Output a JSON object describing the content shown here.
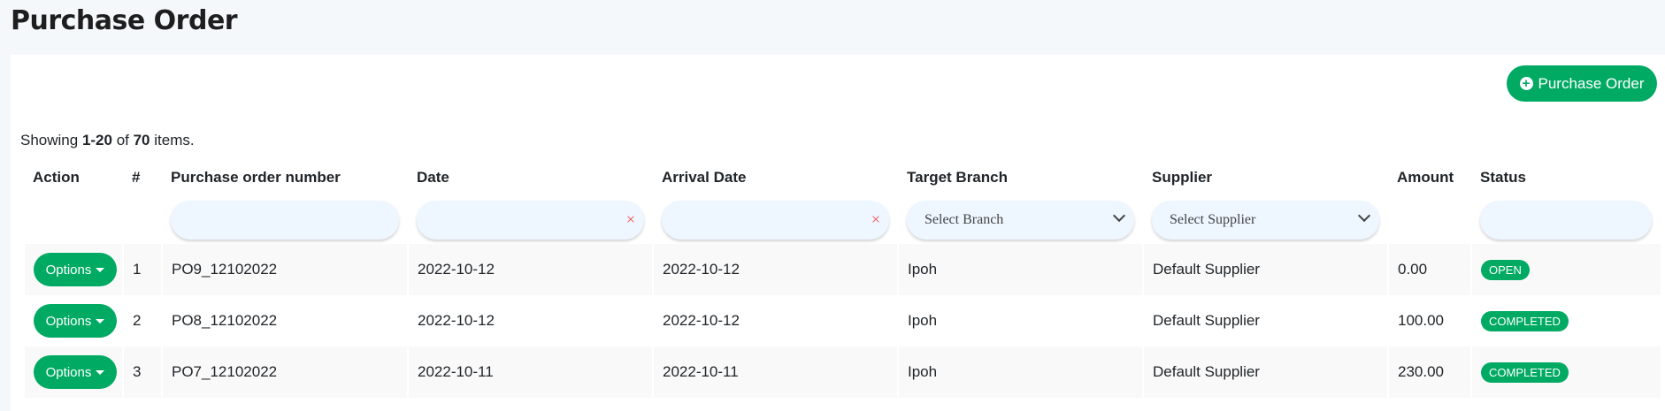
{
  "page": {
    "title": "Purchase Order"
  },
  "toolbar": {
    "add_label": "Purchase Order",
    "add_icon": "plus-circle-icon"
  },
  "summary": {
    "prefix": "Showing ",
    "range": "1-20",
    "middle": " of ",
    "total": "70",
    "suffix": " items."
  },
  "colors": {
    "accent": "#00aa63",
    "clear": "#f05050"
  },
  "table": {
    "headers": [
      "Action",
      "#",
      "Purchase order number",
      "Date",
      "Arrival Date",
      "Target Branch",
      "Supplier",
      "Amount",
      "Status"
    ],
    "filters": {
      "branch_placeholder": "Select Branch",
      "supplier_placeholder": "Select Supplier",
      "clear_icon": "×"
    },
    "options_label": "Options",
    "rows": [
      {
        "n": "1",
        "po": "PO9_12102022",
        "date": "2022-10-12",
        "arrival": "2022-10-12",
        "branch": "Ipoh",
        "supplier": "Default Supplier",
        "amount": "0.00",
        "status": "OPEN"
      },
      {
        "n": "2",
        "po": "PO8_12102022",
        "date": "2022-10-12",
        "arrival": "2022-10-12",
        "branch": "Ipoh",
        "supplier": "Default Supplier",
        "amount": "100.00",
        "status": "COMPLETED"
      },
      {
        "n": "3",
        "po": "PO7_12102022",
        "date": "2022-10-11",
        "arrival": "2022-10-11",
        "branch": "Ipoh",
        "supplier": "Default Supplier",
        "amount": "230.00",
        "status": "COMPLETED"
      }
    ]
  }
}
